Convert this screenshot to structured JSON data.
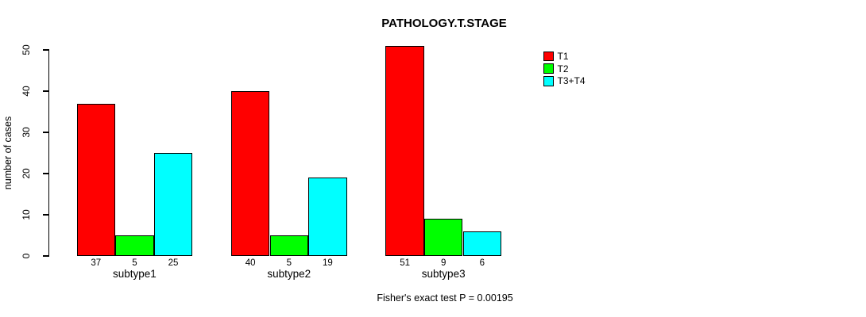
{
  "chart_data": {
    "type": "bar",
    "title": "PATHOLOGY.T.STAGE",
    "ylabel": "number of cases",
    "xlabel": "",
    "footer": "Fisher's exact test P = 0.00195",
    "categories": [
      "subtype1",
      "subtype2",
      "subtype3"
    ],
    "series": [
      {
        "name": "T1",
        "color": "#ff0000",
        "values": [
          37,
          40,
          51
        ]
      },
      {
        "name": "T2",
        "color": "#00ff00",
        "values": [
          5,
          5,
          9
        ]
      },
      {
        "name": "T3+T4",
        "color": "#00ffff",
        "values": [
          25,
          19,
          6
        ]
      }
    ],
    "yticks": [
      0,
      10,
      20,
      30,
      40,
      50
    ],
    "ylim": [
      0,
      50
    ],
    "bar_labels_shown": true,
    "legend_position": "top-right",
    "grid": false,
    "bar_border_color": "#000000",
    "background_color": "#ffffff"
  }
}
